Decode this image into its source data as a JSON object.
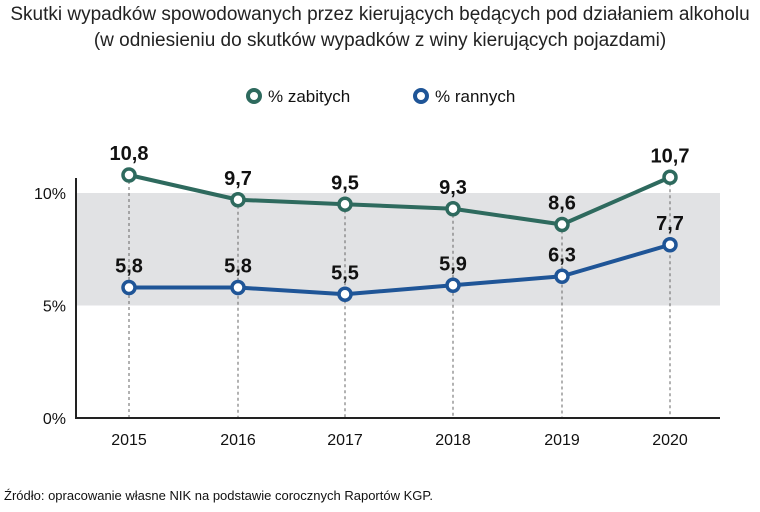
{
  "title": "Skutki wypadków spowodowanych przez kierujących będących pod działaniem alkoholu",
  "subtitle": "(w odniesieniu do skutków wypadków z winy kierujących pojazdami)",
  "source": "Źródło: opracowanie własne NIK na podstawie corocznych Raportów KGP.",
  "chart_data": {
    "type": "line",
    "title": "Skutki wypadków spowodowanych przez kierujących będących pod działaniem alkoholu",
    "subtitle": "(w odniesieniu do skutków wypadków z winy kierujących pojazdami)",
    "categories": [
      "2015",
      "2016",
      "2017",
      "2018",
      "2019",
      "2020"
    ],
    "series": [
      {
        "name": "% zabitych",
        "values": [
          10.8,
          9.7,
          9.5,
          9.3,
          8.6,
          10.7
        ],
        "labels": [
          "10,8",
          "9,7",
          "9,5",
          "9,3",
          "8,6",
          "10,7"
        ],
        "color": "#2e6a5e"
      },
      {
        "name": "% rannych",
        "values": [
          5.8,
          5.8,
          5.5,
          5.9,
          6.3,
          7.7
        ],
        "labels": [
          "5,8",
          "5,8",
          "5,5",
          "5,9",
          "6,3",
          "7,7"
        ],
        "color": "#1f5597"
      }
    ],
    "yticks": [
      0,
      5,
      10
    ],
    "ytick_labels": [
      "0%",
      "5%",
      "10%"
    ],
    "ylim": [
      0,
      11.5
    ],
    "shaded_band": [
      5,
      10
    ],
    "band_color": "#e1e2e4",
    "legend": "top-center",
    "grid": false,
    "xlabel": "",
    "ylabel": ""
  }
}
